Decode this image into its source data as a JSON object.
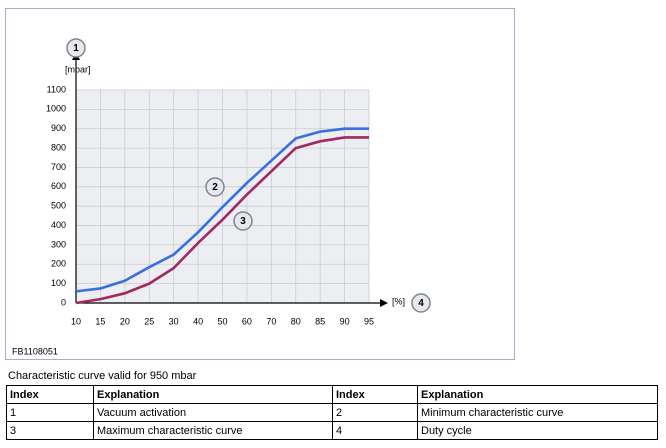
{
  "chart_data": {
    "type": "line",
    "y_label": "[mbar]",
    "x_label": "[%]",
    "figure_id": "FB1108051",
    "categories": [
      "10",
      "15",
      "20",
      "25",
      "30",
      "40",
      "50",
      "60",
      "70",
      "80",
      "85",
      "90",
      "95"
    ],
    "series": [
      {
        "color": "#3a6fe0",
        "values": [
          60,
          75,
          115,
          185,
          250,
          365,
          495,
          620,
          735,
          850,
          885,
          900,
          900
        ]
      },
      {
        "color": "#a3285e",
        "values": [
          0,
          20,
          50,
          100,
          180,
          310,
          430,
          560,
          680,
          800,
          835,
          855,
          855
        ]
      }
    ],
    "callouts": [
      "1",
      "2",
      "3",
      "4"
    ],
    "ylim": [
      0,
      1100
    ],
    "yticks": [
      0,
      100,
      200,
      300,
      400,
      500,
      600,
      700,
      800,
      900,
      1000,
      1100
    ],
    "grid": true
  },
  "caption": "Characteristic curve valid for 950 mbar",
  "table": {
    "header": [
      "Index",
      "Explanation",
      "Index",
      "Explanation"
    ],
    "rows": [
      [
        "1",
        "Vacuum activation",
        "2",
        "Minimum characteristic curve"
      ],
      [
        "3",
        "Maximum characteristic curve",
        "4",
        "Duty cycle"
      ]
    ]
  }
}
